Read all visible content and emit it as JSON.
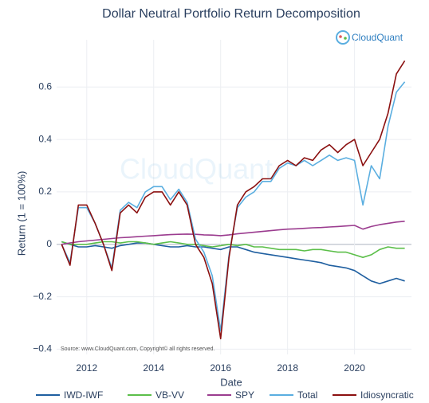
{
  "chart_data": {
    "type": "line",
    "title": "Dollar Neutral Portfolio Return Decomposition",
    "logo": "CloudQuant",
    "source": "Source: www.CloudQuant.com, Copyright© all rights reserved.",
    "xlabel": "Date",
    "ylabel": "Return (1 = 100%)",
    "xlim": [
      2011.1,
      2021.7
    ],
    "xticks": [
      2012,
      2014,
      2016,
      2018,
      2020
    ],
    "ylim": [
      -0.42,
      0.78
    ],
    "yticks": [
      {
        "value": -0.4,
        "label": "−0.4"
      },
      {
        "value": -0.2,
        "label": "−0.2"
      },
      0,
      0.2,
      0.4,
      0.6
    ],
    "grid": true,
    "legend": "bottom",
    "x": [
      2011.25,
      2011.5,
      2011.75,
      2012,
      2012.25,
      2012.5,
      2012.75,
      2013,
      2013.25,
      2013.5,
      2013.75,
      2014,
      2014.25,
      2014.5,
      2014.75,
      2015,
      2015.25,
      2015.5,
      2015.75,
      2016,
      2016.25,
      2016.5,
      2016.75,
      2017,
      2017.25,
      2017.5,
      2017.75,
      2018,
      2018.25,
      2018.5,
      2018.75,
      2019,
      2019.25,
      2019.5,
      2019.75,
      2020,
      2020.25,
      2020.5,
      2020.75,
      2021,
      2021.25,
      2021.5
    ],
    "series": [
      {
        "name": "IWD-IWF",
        "color": "#1f5fa0",
        "values": [
          0.01,
          0.0,
          -0.01,
          -0.01,
          -0.005,
          -0.01,
          -0.015,
          -0.005,
          0.0,
          0.005,
          0.005,
          0.0,
          -0.005,
          -0.01,
          -0.01,
          -0.005,
          -0.01,
          -0.01,
          -0.015,
          -0.02,
          -0.01,
          -0.01,
          -0.02,
          -0.03,
          -0.035,
          -0.04,
          -0.045,
          -0.05,
          -0.055,
          -0.06,
          -0.065,
          -0.07,
          -0.08,
          -0.085,
          -0.09,
          -0.1,
          -0.12,
          -0.14,
          -0.15,
          -0.14,
          -0.13,
          -0.14
        ]
      },
      {
        "name": "VB-VV",
        "color": "#5cbf4a",
        "values": [
          0.01,
          0.0,
          0.0,
          0.0,
          0.005,
          0.01,
          0.01,
          0.005,
          0.01,
          0.01,
          0.005,
          0.0,
          0.005,
          0.01,
          0.005,
          0.0,
          0.0,
          -0.005,
          -0.01,
          -0.005,
          0.0,
          -0.005,
          0.0,
          -0.01,
          -0.01,
          -0.015,
          -0.02,
          -0.02,
          -0.02,
          -0.025,
          -0.02,
          -0.02,
          -0.025,
          -0.03,
          -0.03,
          -0.04,
          -0.05,
          -0.04,
          -0.02,
          -0.01,
          -0.015,
          -0.015
        ]
      },
      {
        "name": "SPY",
        "color": "#9b3c8f",
        "values": [
          0.0,
          0.005,
          0.01,
          0.013,
          0.016,
          0.019,
          0.022,
          0.025,
          0.027,
          0.029,
          0.031,
          0.033,
          0.035,
          0.037,
          0.038,
          0.039,
          0.038,
          0.036,
          0.035,
          0.033,
          0.036,
          0.04,
          0.043,
          0.046,
          0.049,
          0.052,
          0.055,
          0.058,
          0.059,
          0.061,
          0.063,
          0.064,
          0.066,
          0.068,
          0.07,
          0.072,
          0.058,
          0.068,
          0.075,
          0.08,
          0.085,
          0.088
        ]
      },
      {
        "name": "Total",
        "color": "#5aaee0",
        "values": [
          0.0,
          -0.07,
          0.14,
          0.14,
          0.08,
          0.0,
          -0.09,
          0.13,
          0.16,
          0.14,
          0.2,
          0.22,
          0.22,
          0.17,
          0.21,
          0.16,
          0.02,
          -0.03,
          -0.12,
          -0.33,
          -0.04,
          0.14,
          0.18,
          0.2,
          0.24,
          0.24,
          0.29,
          0.31,
          0.3,
          0.32,
          0.3,
          0.32,
          0.34,
          0.32,
          0.33,
          0.32,
          0.15,
          0.3,
          0.25,
          0.45,
          0.58,
          0.62
        ]
      },
      {
        "name": "Idiosyncratic",
        "color": "#8b1010",
        "values": [
          0.0,
          -0.08,
          0.15,
          0.15,
          0.08,
          0.0,
          -0.1,
          0.12,
          0.15,
          0.12,
          0.18,
          0.2,
          0.2,
          0.15,
          0.2,
          0.15,
          0.0,
          -0.05,
          -0.15,
          -0.36,
          -0.05,
          0.15,
          0.2,
          0.22,
          0.25,
          0.25,
          0.3,
          0.32,
          0.3,
          0.33,
          0.32,
          0.36,
          0.38,
          0.35,
          0.38,
          0.4,
          0.3,
          0.35,
          0.4,
          0.5,
          0.65,
          0.7
        ]
      }
    ]
  }
}
